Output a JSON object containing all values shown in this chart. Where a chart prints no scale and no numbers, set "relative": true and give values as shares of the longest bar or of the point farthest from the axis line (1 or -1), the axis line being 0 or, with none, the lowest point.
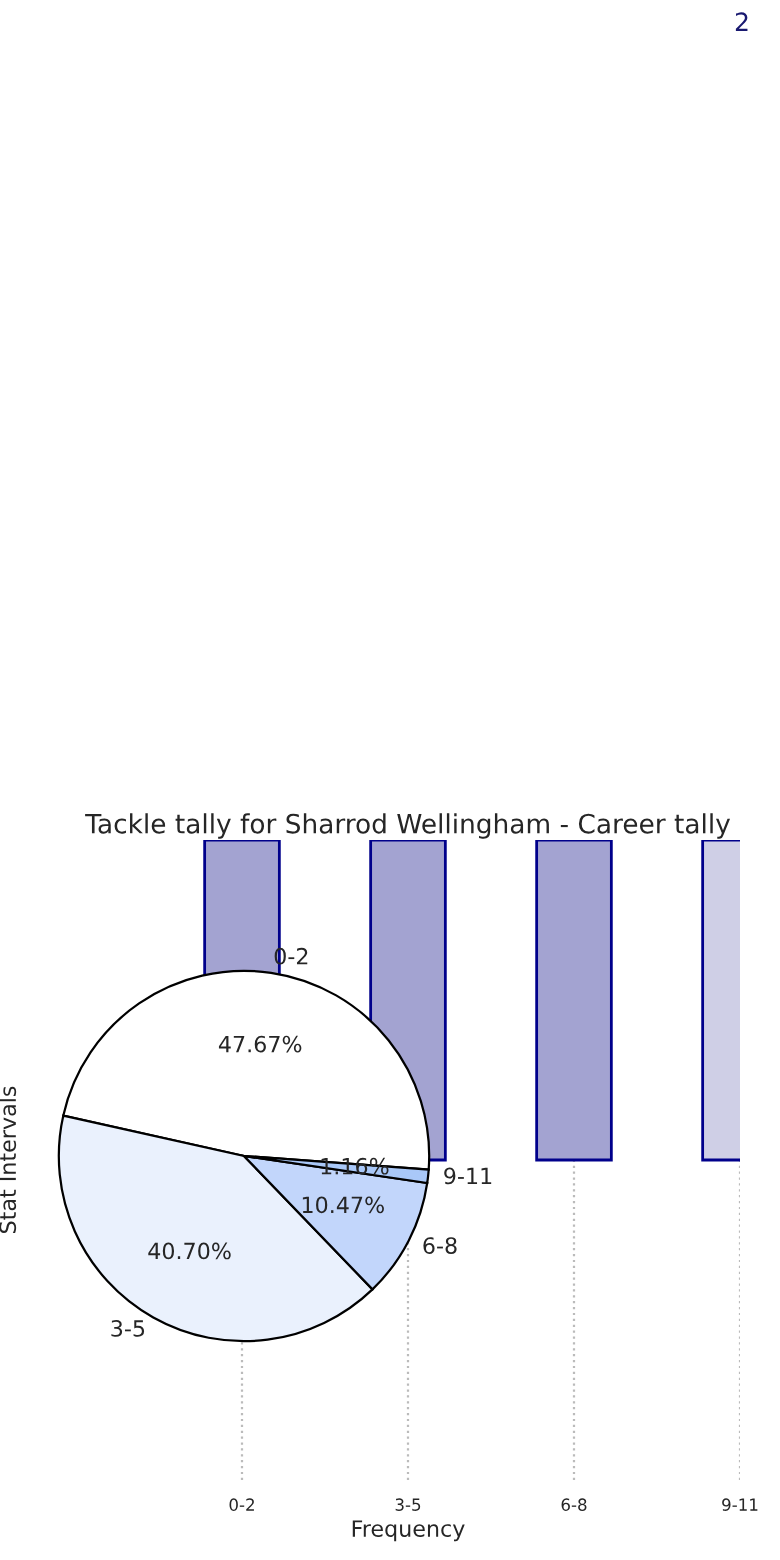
{
  "chart_data": [
    {
      "type": "bar",
      "title": "Tackle tally for Sharrod Wellingham - Career tally",
      "xlabel": "Frequency",
      "ylabel": "Stat Intervals",
      "relative": true,
      "categories": [
        "0-2",
        "3-5",
        "6-8",
        "9-11"
      ],
      "series": [
        {
          "values": [
            1,
            1,
            1,
            1
          ],
          "colors": [
            "#a3a3d1",
            "#a3a3d1",
            "#a3a3d1",
            "#cfcfe6"
          ]
        }
      ],
      "grid": "x",
      "tick_labels": "x",
      "annotations": [
        "2"
      ]
    },
    {
      "type": "pie",
      "categories": [
        "0-2",
        "3-5",
        "6-8",
        "9-11"
      ],
      "values": [
        47.67,
        40.7,
        10.47,
        1.16
      ],
      "colors": [
        "#ffffff",
        "#eaf1fd",
        "#c2d6fb",
        "#a9c8f8"
      ],
      "value_labels": [
        "47.67%",
        "40.70%",
        "10.47%",
        "1.16%"
      ]
    }
  ]
}
